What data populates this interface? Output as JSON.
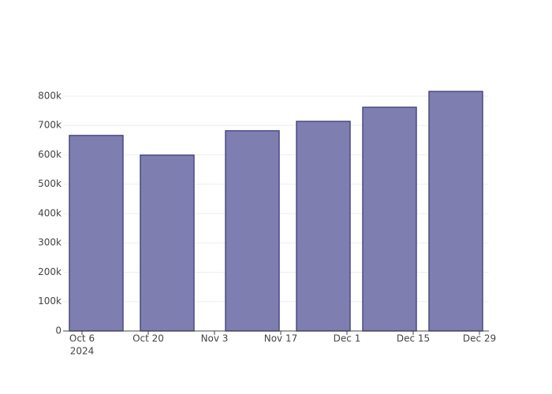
{
  "chart_data": {
    "type": "bar",
    "x": [
      "2024-10-09",
      "2024-10-24",
      "2024-11-11",
      "2024-11-26",
      "2024-12-10",
      "2024-12-24"
    ],
    "values": [
      666000,
      599000,
      682000,
      714000,
      762000,
      816000
    ],
    "color": "#7f7eb0",
    "edge_color": "#4b4a82",
    "xlim": [
      "2024-10-02",
      "2024-12-31"
    ],
    "xticks": [
      {
        "value": "2024-10-06",
        "label": "Oct 6"
      },
      {
        "value": "2024-10-20",
        "label": "Oct 20"
      },
      {
        "value": "2024-11-03",
        "label": "Nov 3"
      },
      {
        "value": "2024-11-17",
        "label": "Nov 17"
      },
      {
        "value": "2024-12-01",
        "label": "Dec 1"
      },
      {
        "value": "2024-12-15",
        "label": "Dec 15"
      },
      {
        "value": "2024-12-29",
        "label": "Dec 29"
      }
    ],
    "x_year_label": "2024",
    "ylim": [
      0,
      859000
    ],
    "yticks": [
      0,
      {
        "value": 100000,
        "label": "100k"
      },
      {
        "value": 200000,
        "label": "200k"
      },
      {
        "value": 300000,
        "label": "300k"
      },
      {
        "value": 400000,
        "label": "400k"
      },
      {
        "value": 500000,
        "label": "500k"
      },
      {
        "value": 600000,
        "label": "600k"
      },
      {
        "value": 700000,
        "label": "700k"
      },
      {
        "value": 800000,
        "label": "800k"
      }
    ],
    "grid": true
  }
}
